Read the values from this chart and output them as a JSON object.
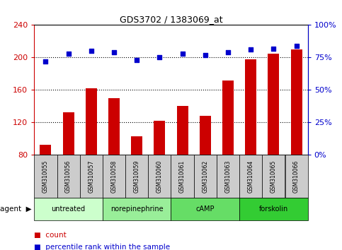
{
  "title": "GDS3702 / 1383069_at",
  "samples": [
    "GSM310055",
    "GSM310056",
    "GSM310057",
    "GSM310058",
    "GSM310059",
    "GSM310060",
    "GSM310061",
    "GSM310062",
    "GSM310063",
    "GSM310064",
    "GSM310065",
    "GSM310066"
  ],
  "counts": [
    93,
    133,
    162,
    150,
    103,
    122,
    140,
    128,
    172,
    198,
    205,
    210
  ],
  "percentiles": [
    72,
    78,
    80,
    79,
    73,
    75,
    78,
    77,
    79,
    81,
    82,
    84
  ],
  "bar_color": "#cc0000",
  "dot_color": "#0000cc",
  "ylim_left": [
    80,
    240
  ],
  "ylim_right": [
    0,
    100
  ],
  "yticks_left": [
    80,
    120,
    160,
    200,
    240
  ],
  "yticks_right": [
    0,
    25,
    50,
    75,
    100
  ],
  "groups": [
    {
      "label": "untreated",
      "start": 0,
      "end": 3,
      "color": "#ccffcc"
    },
    {
      "label": "norepinephrine",
      "start": 3,
      "end": 6,
      "color": "#99ee99"
    },
    {
      "label": "cAMP",
      "start": 6,
      "end": 9,
      "color": "#66dd66"
    },
    {
      "label": "forskolin",
      "start": 9,
      "end": 12,
      "color": "#33cc33"
    }
  ],
  "legend_count_label": "count",
  "legend_pct_label": "percentile rank within the sample",
  "tick_color_left": "#cc0000",
  "tick_color_right": "#0000cc",
  "grid_color": "#000000",
  "sample_bg_color": "#cccccc",
  "background_plot": "#ffffff"
}
